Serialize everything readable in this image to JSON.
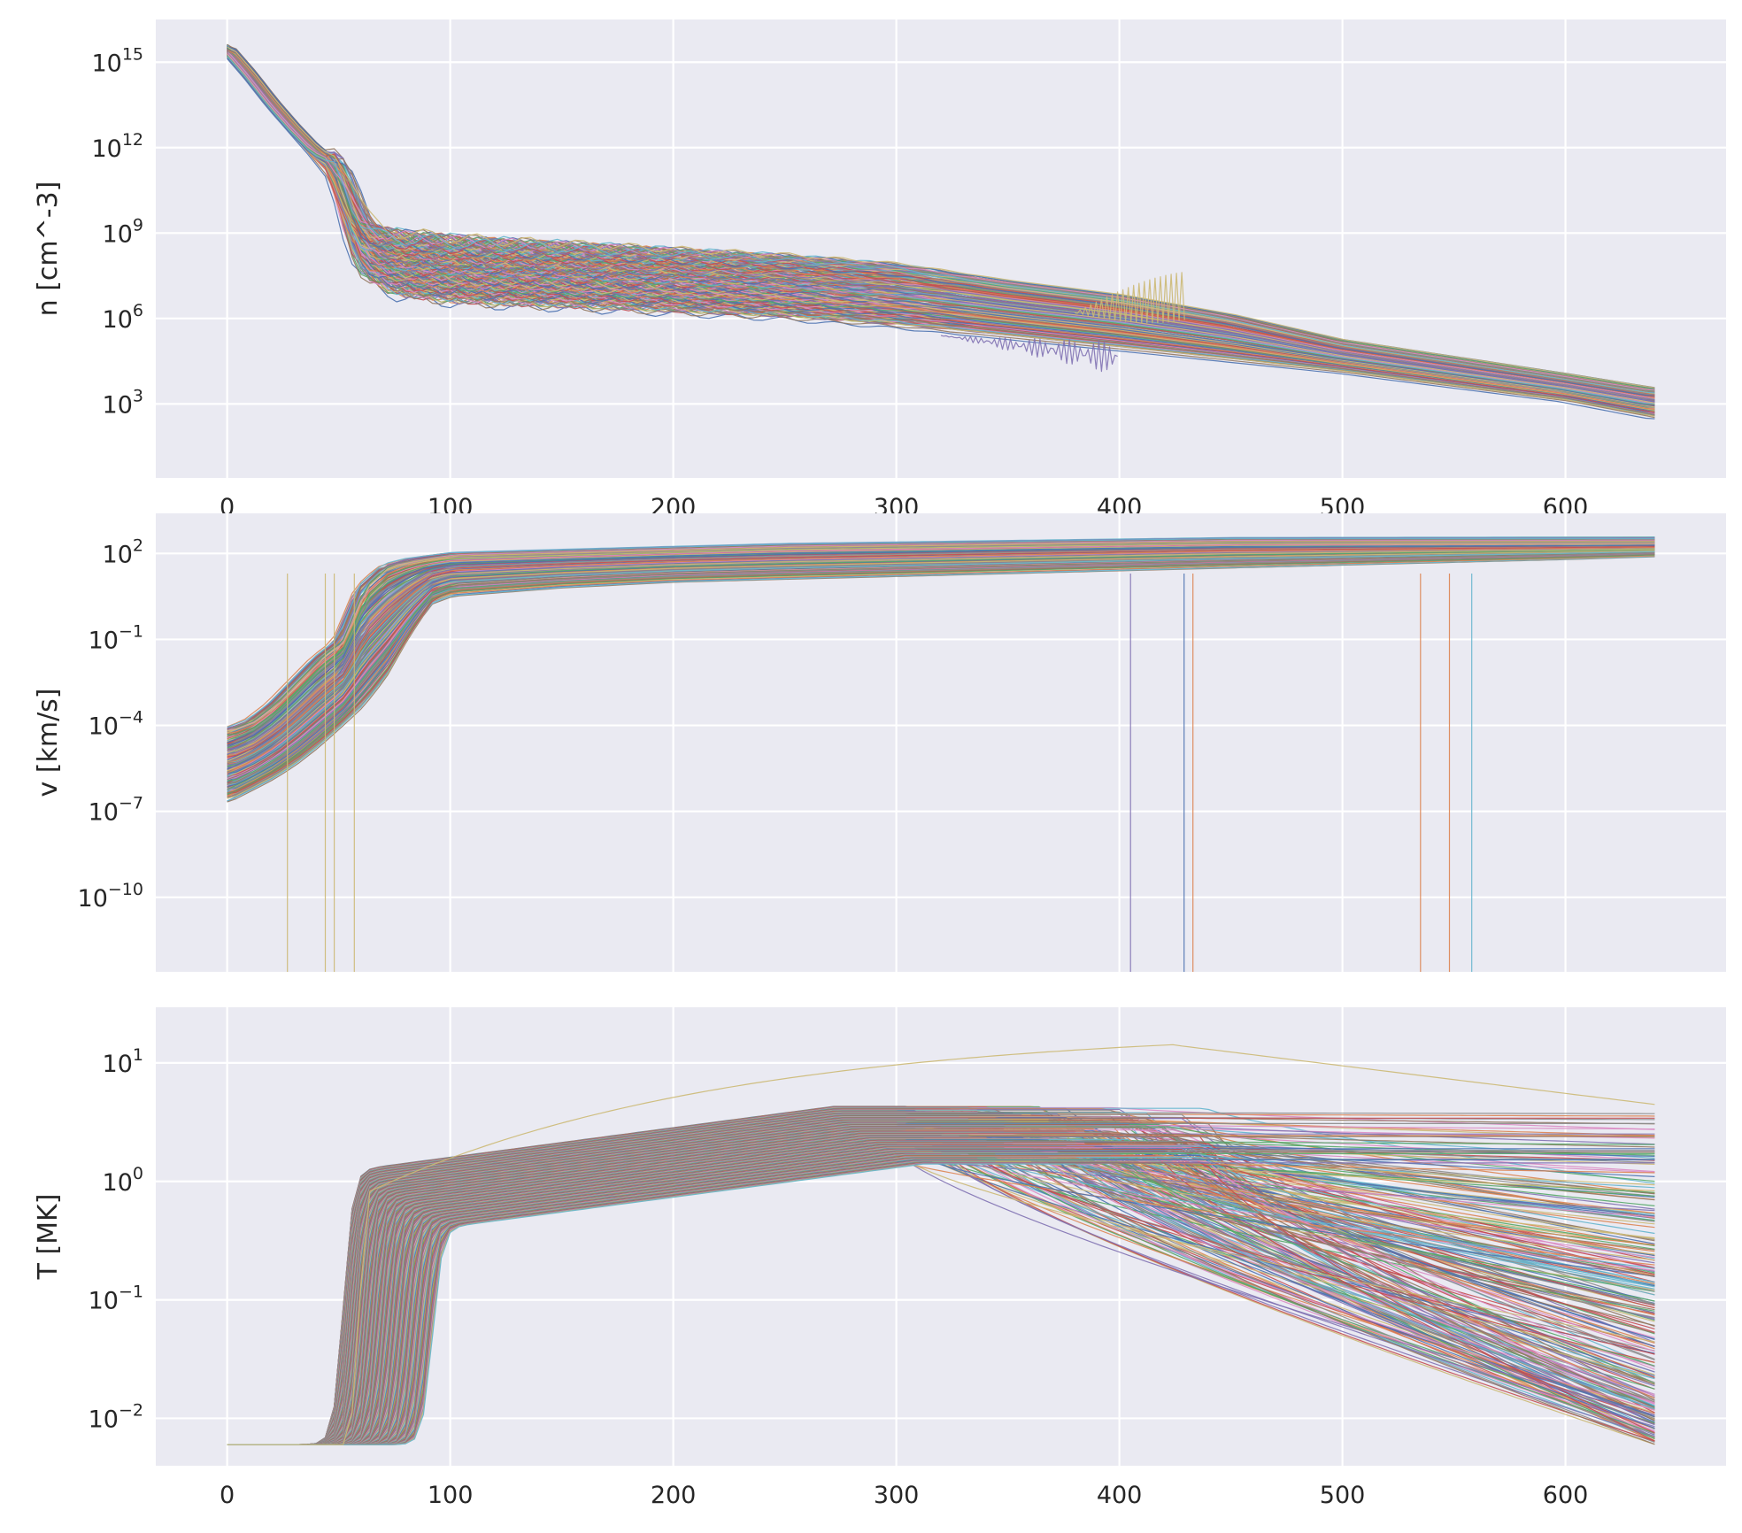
{
  "palette": [
    "#4c72b0",
    "#dd8452",
    "#55a868",
    "#c44e52",
    "#8172b3",
    "#937860",
    "#da8bc3",
    "#8c8c8c",
    "#ccb974",
    "#64b5cd"
  ],
  "chart_data": [
    {
      "type": "line",
      "title": "",
      "xlabel": "",
      "ylabel": "n [cm^-3]",
      "yscale": "log",
      "xlim": [
        -32,
        672
      ],
      "ylim_log10": [
        0.4,
        16.5
      ],
      "grid": true,
      "legend": "none",
      "x_ticks": [
        {
          "value": 0,
          "label": "0"
        },
        {
          "value": 100,
          "label": "100"
        },
        {
          "value": 200,
          "label": "200"
        },
        {
          "value": 300,
          "label": "300"
        },
        {
          "value": 400,
          "label": "400"
        },
        {
          "value": 500,
          "label": "500"
        },
        {
          "value": 600,
          "label": "600"
        }
      ],
      "y_ticks": [
        {
          "exp": 3,
          "base": "10",
          "sup": "3"
        },
        {
          "exp": 6,
          "base": "10",
          "sup": "6"
        },
        {
          "exp": 9,
          "base": "10",
          "sup": "9"
        },
        {
          "exp": 12,
          "base": "10",
          "sup": "12"
        },
        {
          "exp": 15,
          "base": "10",
          "sup": "15"
        }
      ],
      "series_count": 260,
      "x": [
        0,
        10,
        20,
        30,
        40,
        48,
        52,
        56,
        60,
        64,
        68,
        72,
        76,
        80,
        90,
        100,
        120,
        150,
        200,
        250,
        300,
        350,
        400,
        450,
        500,
        550,
        600,
        640
      ],
      "envelope_log10_low": [
        15.5,
        14.6,
        13.6,
        12.7,
        11.8,
        11.0,
        10.0,
        8.8,
        7.9,
        7.5,
        7.3,
        7.1,
        7.0,
        6.9,
        6.8,
        6.7,
        6.6,
        6.5,
        6.3,
        6.1,
        5.8,
        5.4,
        5.0,
        4.6,
        4.2,
        3.7,
        3.2,
        2.6
      ],
      "envelope_log10_high": [
        15.5,
        14.6,
        13.6,
        12.7,
        11.9,
        11.6,
        11.2,
        10.5,
        9.7,
        9.3,
        9.1,
        9.0,
        9.0,
        8.9,
        8.9,
        8.8,
        8.7,
        8.6,
        8.4,
        8.2,
        7.9,
        7.3,
        6.8,
        6.1,
        5.2,
        4.6,
        4.0,
        3.5
      ]
    },
    {
      "type": "line",
      "title": "",
      "xlabel": "",
      "ylabel": "v [km/s]",
      "yscale": "log",
      "xlim": [
        -32,
        672
      ],
      "ylim_log10": [
        -12.6,
        3.4
      ],
      "grid": true,
      "legend": "none",
      "x_ticks": [
        {
          "value": 0,
          "label": ""
        },
        {
          "value": 100,
          "label": ""
        },
        {
          "value": 200,
          "label": ""
        },
        {
          "value": 300,
          "label": ""
        },
        {
          "value": 400,
          "label": ""
        },
        {
          "value": 500,
          "label": ""
        },
        {
          "value": 600,
          "label": ""
        }
      ],
      "y_ticks": [
        {
          "exp": -10,
          "base": "10",
          "sup": "−10"
        },
        {
          "exp": -7,
          "base": "10",
          "sup": "−7"
        },
        {
          "exp": -4,
          "base": "10",
          "sup": "−4"
        },
        {
          "exp": -1,
          "base": "10",
          "sup": "−1"
        },
        {
          "exp": 2,
          "base": "10",
          "sup": "2"
        }
      ],
      "series_count": 260,
      "x": [
        0,
        10,
        20,
        30,
        40,
        50,
        60,
        70,
        80,
        90,
        100,
        150,
        200,
        250,
        300,
        350,
        400,
        450,
        500,
        550,
        600,
        640
      ],
      "envelope_log10_low": [
        -6.6,
        -6.2,
        -5.8,
        -5.3,
        -4.7,
        -4.0,
        -3.3,
        -2.3,
        -0.9,
        0.3,
        0.6,
        0.9,
        1.1,
        1.2,
        1.3,
        1.4,
        1.5,
        1.6,
        1.7,
        1.8,
        1.9,
        2.0
      ],
      "envelope_log10_high": [
        -4.1,
        -3.8,
        -3.2,
        -2.4,
        -1.6,
        -1.0,
        0.9,
        1.6,
        1.8,
        1.9,
        2.0,
        2.1,
        2.2,
        2.3,
        2.35,
        2.4,
        2.45,
        2.5,
        2.5,
        2.5,
        2.5,
        2.5
      ]
    },
    {
      "type": "line",
      "title": "",
      "xlabel": "",
      "ylabel": "T [MK]",
      "yscale": "log",
      "xlim": [
        -32,
        672
      ],
      "ylim_log10": [
        -2.4,
        1.47
      ],
      "grid": true,
      "legend": "none",
      "x_ticks": [
        {
          "value": 0,
          "label": "0"
        },
        {
          "value": 100,
          "label": "100"
        },
        {
          "value": 200,
          "label": "200"
        },
        {
          "value": 300,
          "label": "300"
        },
        {
          "value": 400,
          "label": "400"
        },
        {
          "value": 500,
          "label": "500"
        },
        {
          "value": 600,
          "label": "600"
        }
      ],
      "y_ticks": [
        {
          "exp": -2,
          "base": "10",
          "sup": "−2"
        },
        {
          "exp": -1,
          "base": "10",
          "sup": "−1"
        },
        {
          "exp": 0,
          "base": "10",
          "sup": "0"
        },
        {
          "exp": 1,
          "base": "10",
          "sup": "1"
        }
      ],
      "series_count": 260,
      "baseline_MK": 0.006,
      "onset_range": [
        52,
        92
      ],
      "peak_range_MK": [
        1.4,
        4.3
      ],
      "final_range_MK": [
        0.006,
        4.6
      ],
      "outlier_peak_MK": 20
    }
  ]
}
